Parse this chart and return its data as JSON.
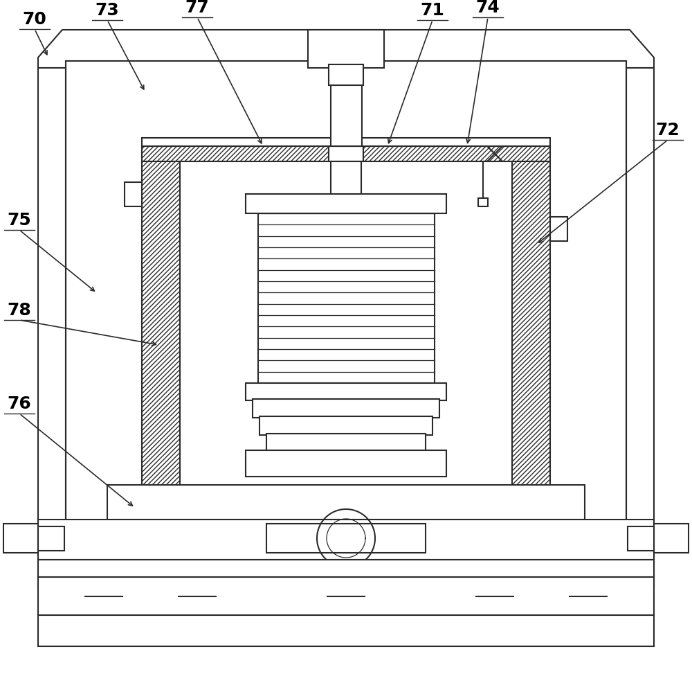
{
  "bg_color": "#ffffff",
  "line_color": "#2a2a2a",
  "font_size": 18,
  "lw": 1.5
}
